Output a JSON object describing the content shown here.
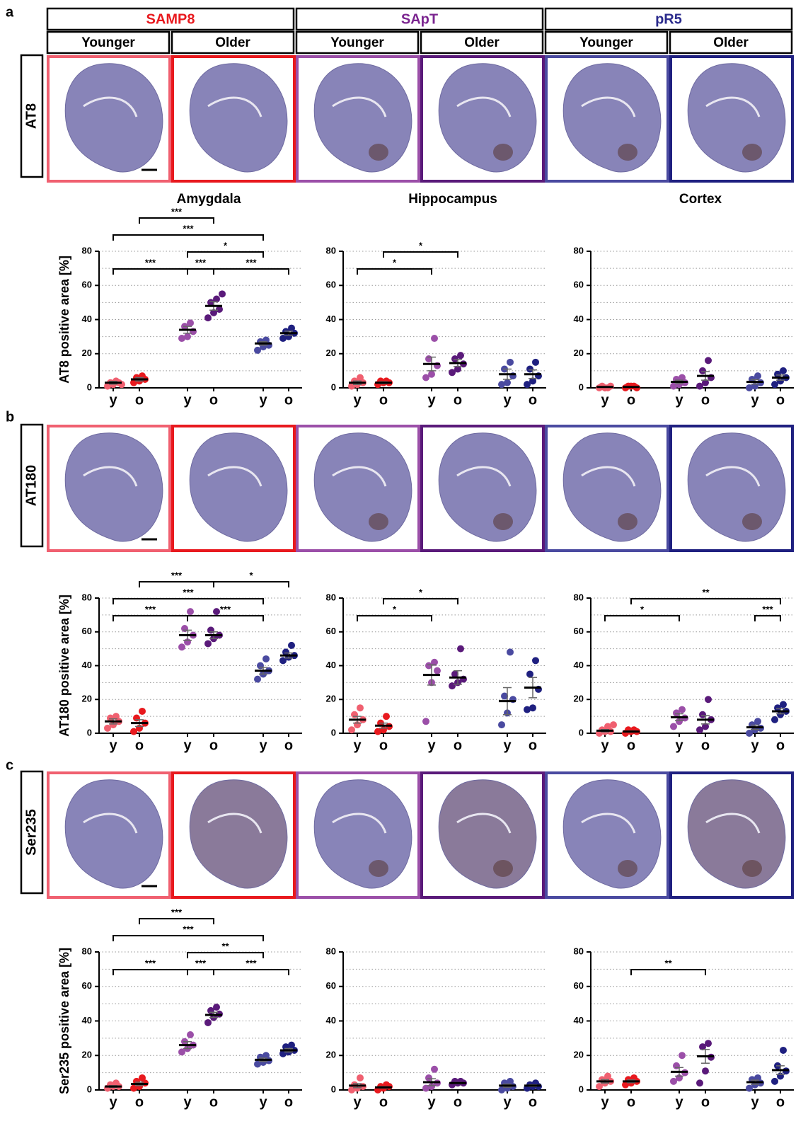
{
  "figure": {
    "panel_labels": [
      "a",
      "b",
      "c"
    ],
    "strains": [
      "SAMP8",
      "SApT",
      "pR5"
    ],
    "strain_colors": [
      "#e8191e",
      "#7b2590",
      "#2a2a8c"
    ],
    "ages": [
      "Younger",
      "Older"
    ],
    "stains": [
      "AT8",
      "AT180",
      "Ser235"
    ]
  },
  "chart_data": [
    {
      "type": "scatter",
      "title": "Amygdala",
      "y_label": "AT8 positive area [%]",
      "categories": [
        "y",
        "o",
        "y",
        "o",
        "y",
        "o"
      ],
      "ylim": [
        0,
        80
      ],
      "yticks": [
        0,
        20,
        40,
        60,
        80
      ],
      "grid_lines": [
        10,
        20,
        30,
        40,
        50,
        60,
        70,
        80
      ],
      "series": [
        {
          "color": "#f06070",
          "values": [
            1,
            2,
            3,
            3,
            4,
            2
          ],
          "mean": 3,
          "sem": 0.8
        },
        {
          "color": "#e8191e",
          "values": [
            3,
            4,
            5,
            6,
            7
          ],
          "mean": 5,
          "sem": 1
        },
        {
          "color": "#9b4fa8",
          "values": [
            29,
            30,
            33,
            36,
            38
          ],
          "mean": 34,
          "sem": 2
        },
        {
          "color": "#5a1a7a",
          "values": [
            41,
            44,
            46,
            50,
            52,
            55
          ],
          "mean": 48,
          "sem": 2.5
        },
        {
          "color": "#4a4aa0",
          "values": [
            22,
            24,
            25,
            27,
            28
          ],
          "mean": 26,
          "sem": 1
        },
        {
          "color": "#1f2080",
          "values": [
            29,
            30,
            32,
            33,
            35
          ],
          "mean": 32,
          "sem": 1.2
        }
      ],
      "brackets": [
        {
          "from": 2,
          "to": 3,
          "label": "***"
        },
        {
          "from": 0,
          "to": 2,
          "label": "***"
        },
        {
          "from": 2,
          "to": 4,
          "label": "*"
        },
        {
          "from": 0,
          "to": 4,
          "label": "***"
        },
        {
          "from": 1,
          "to": 3,
          "label": "***"
        },
        {
          "from": 3,
          "to": 5,
          "label": "***"
        }
      ]
    },
    {
      "type": "scatter",
      "title": "Hippocampus",
      "categories": [
        "y",
        "o",
        "y",
        "o",
        "y",
        "o"
      ],
      "ylim": [
        0,
        80
      ],
      "yticks": [
        0,
        20,
        40,
        60,
        80
      ],
      "grid_lines": [
        10,
        20,
        30,
        40,
        50,
        60,
        70,
        80
      ],
      "series": [
        {
          "color": "#f06070",
          "values": [
            1,
            2,
            3,
            4,
            6
          ],
          "mean": 3,
          "sem": 1
        },
        {
          "color": "#e8191e",
          "values": [
            2,
            3,
            3,
            4,
            4
          ],
          "mean": 3,
          "sem": 0.6
        },
        {
          "color": "#9b4fa8",
          "values": [
            6,
            8,
            13,
            17,
            29
          ],
          "mean": 14,
          "sem": 4
        },
        {
          "color": "#5a1a7a",
          "values": [
            9,
            11,
            14,
            17,
            19
          ],
          "mean": 14.5,
          "sem": 2
        },
        {
          "color": "#4a4aa0",
          "values": [
            2,
            3,
            7,
            11,
            15
          ],
          "mean": 8,
          "sem": 3
        },
        {
          "color": "#1f2080",
          "values": [
            2,
            4,
            7,
            11,
            15
          ],
          "mean": 8,
          "sem": 2.5
        }
      ],
      "brackets": [
        {
          "from": 0,
          "to": 2,
          "label": "*"
        },
        {
          "from": 1,
          "to": 3,
          "label": "*"
        }
      ]
    },
    {
      "type": "scatter",
      "title": "Cortex",
      "categories": [
        "y",
        "o",
        "y",
        "o",
        "y",
        "o"
      ],
      "ylim": [
        0,
        80
      ],
      "yticks": [
        0,
        20,
        40,
        60,
        80
      ],
      "grid_lines": [
        10,
        20,
        30,
        40,
        50,
        60,
        70,
        80
      ],
      "series": [
        {
          "color": "#f06070",
          "values": [
            0,
            0,
            1,
            1,
            0
          ],
          "mean": 0.5,
          "sem": 0.2
        },
        {
          "color": "#e8191e",
          "values": [
            0,
            1,
            0,
            1,
            1
          ],
          "mean": 0.5,
          "sem": 0.2
        },
        {
          "color": "#9b4fa8",
          "values": [
            1,
            2,
            3,
            5,
            6
          ],
          "mean": 3.5,
          "sem": 1
        },
        {
          "color": "#5a1a7a",
          "values": [
            1,
            3,
            6,
            10,
            16
          ],
          "mean": 7,
          "sem": 2.5
        },
        {
          "color": "#4a4aa0",
          "values": [
            0,
            1,
            3,
            5,
            7
          ],
          "mean": 3.5,
          "sem": 1.3
        },
        {
          "color": "#1f2080",
          "values": [
            2,
            4,
            6,
            8,
            10
          ],
          "mean": 6,
          "sem": 1.5
        }
      ],
      "brackets": []
    },
    {
      "type": "scatter",
      "y_label": "AT180 positive area [%]",
      "categories": [
        "y",
        "o",
        "y",
        "o",
        "y",
        "o"
      ],
      "ylim": [
        0,
        80
      ],
      "yticks": [
        0,
        20,
        40,
        60,
        80
      ],
      "grid_lines": [
        10,
        20,
        30,
        40,
        50,
        60,
        70,
        80
      ],
      "series": [
        {
          "color": "#f06070",
          "values": [
            3,
            5,
            7,
            9,
            10
          ],
          "mean": 7,
          "sem": 1.5
        },
        {
          "color": "#e8191e",
          "values": [
            1,
            3,
            6,
            9,
            13
          ],
          "mean": 6,
          "sem": 2
        },
        {
          "color": "#9b4fa8",
          "values": [
            51,
            54,
            58,
            62,
            72
          ],
          "mean": 58,
          "sem": 3
        },
        {
          "color": "#5a1a7a",
          "values": [
            53,
            56,
            58,
            61,
            72
          ],
          "mean": 58,
          "sem": 2
        },
        {
          "color": "#4a4aa0",
          "values": [
            32,
            35,
            37,
            40,
            44
          ],
          "mean": 37,
          "sem": 2
        },
        {
          "color": "#1f2080",
          "values": [
            43,
            45,
            46,
            48,
            52
          ],
          "mean": 46,
          "sem": 1.5
        }
      ],
      "brackets": [
        {
          "from": 0,
          "to": 2,
          "label": "***"
        },
        {
          "from": 2,
          "to": 4,
          "label": "***"
        },
        {
          "from": 0,
          "to": 4,
          "label": "***"
        },
        {
          "from": 1,
          "to": 3,
          "label": "***"
        },
        {
          "from": 3,
          "to": 5,
          "label": "*"
        }
      ]
    },
    {
      "type": "scatter",
      "categories": [
        "y",
        "o",
        "y",
        "o",
        "y",
        "o"
      ],
      "ylim": [
        0,
        80
      ],
      "yticks": [
        0,
        20,
        40,
        60,
        80
      ],
      "grid_lines": [
        10,
        20,
        30,
        40,
        50,
        60,
        70,
        80
      ],
      "series": [
        {
          "color": "#f06070",
          "values": [
            2,
            5,
            8,
            11,
            15
          ],
          "mean": 8,
          "sem": 2
        },
        {
          "color": "#e8191e",
          "values": [
            1,
            2,
            4,
            6,
            10
          ],
          "mean": 4.5,
          "sem": 1.5
        },
        {
          "color": "#9b4fa8",
          "values": [
            7,
            30,
            37,
            40,
            42
          ],
          "mean": 34.5,
          "sem": 6
        },
        {
          "color": "#5a1a7a",
          "values": [
            28,
            30,
            32,
            35,
            50
          ],
          "mean": 33,
          "sem": 4
        },
        {
          "color": "#4a4aa0",
          "values": [
            5,
            12,
            20,
            22,
            48
          ],
          "mean": 19,
          "sem": 8
        },
        {
          "color": "#1f2080",
          "values": [
            14,
            15,
            26,
            35,
            43
          ],
          "mean": 27,
          "sem": 6
        }
      ],
      "brackets": [
        {
          "from": 0,
          "to": 2,
          "label": "*"
        },
        {
          "from": 1,
          "to": 3,
          "label": "*"
        }
      ]
    },
    {
      "type": "scatter",
      "categories": [
        "y",
        "o",
        "y",
        "o",
        "y",
        "o"
      ],
      "ylim": [
        0,
        80
      ],
      "yticks": [
        0,
        20,
        40,
        60,
        80
      ],
      "grid_lines": [
        10,
        20,
        30,
        40,
        50,
        60,
        70,
        80
      ],
      "series": [
        {
          "color": "#f06070",
          "values": [
            0,
            1,
            1,
            2,
            4,
            5
          ],
          "mean": 1.5,
          "sem": 0.7
        },
        {
          "color": "#e8191e",
          "values": [
            0,
            1,
            1,
            2,
            2
          ],
          "mean": 1,
          "sem": 0.4
        },
        {
          "color": "#9b4fa8",
          "values": [
            4,
            7,
            9,
            12,
            14
          ],
          "mean": 9.5,
          "sem": 2
        },
        {
          "color": "#5a1a7a",
          "values": [
            2,
            4,
            8,
            11,
            20
          ],
          "mean": 8,
          "sem": 2.5
        },
        {
          "color": "#4a4aa0",
          "values": [
            0,
            2,
            3,
            5,
            7
          ],
          "mean": 3.5,
          "sem": 1.3
        },
        {
          "color": "#1f2080",
          "values": [
            8,
            11,
            13,
            15,
            17
          ],
          "mean": 13,
          "sem": 1.5
        }
      ],
      "brackets": [
        {
          "from": 4,
          "to": 5,
          "label": "***"
        },
        {
          "from": 0,
          "to": 2,
          "label": "*"
        },
        {
          "from": 1,
          "to": 5,
          "label": "**"
        }
      ]
    },
    {
      "type": "scatter",
      "y_label": "Ser235 positive area [%]",
      "categories": [
        "y",
        "o",
        "y",
        "o",
        "y",
        "o"
      ],
      "ylim": [
        0,
        80
      ],
      "yticks": [
        0,
        20,
        40,
        60,
        80
      ],
      "grid_lines": [
        10,
        20,
        30,
        40,
        50,
        60,
        70,
        80
      ],
      "series": [
        {
          "color": "#f06070",
          "values": [
            1,
            2,
            2,
            3,
            4
          ],
          "mean": 2,
          "sem": 0.5
        },
        {
          "color": "#e8191e",
          "values": [
            1,
            2,
            4,
            5,
            7
          ],
          "mean": 3.5,
          "sem": 1
        },
        {
          "color": "#9b4fa8",
          "values": [
            22,
            24,
            26,
            28,
            32
          ],
          "mean": 26,
          "sem": 2
        },
        {
          "color": "#5a1a7a",
          "values": [
            39,
            42,
            44,
            46,
            48
          ],
          "mean": 43.5,
          "sem": 1.5
        },
        {
          "color": "#4a4aa0",
          "values": [
            15,
            16,
            17,
            19,
            20
          ],
          "mean": 17.5,
          "sem": 1
        },
        {
          "color": "#1f2080",
          "values": [
            21,
            22,
            23,
            25,
            26
          ],
          "mean": 23,
          "sem": 1
        }
      ],
      "brackets": [
        {
          "from": 2,
          "to": 3,
          "label": "***"
        },
        {
          "from": 0,
          "to": 2,
          "label": "***"
        },
        {
          "from": 2,
          "to": 4,
          "label": "**"
        },
        {
          "from": 0,
          "to": 4,
          "label": "***"
        },
        {
          "from": 1,
          "to": 3,
          "label": "***"
        },
        {
          "from": 3,
          "to": 5,
          "label": "***"
        }
      ]
    },
    {
      "type": "scatter",
      "categories": [
        "y",
        "o",
        "y",
        "o",
        "y",
        "o"
      ],
      "ylim": [
        0,
        80
      ],
      "yticks": [
        0,
        20,
        40,
        60,
        80
      ],
      "grid_lines": [
        10,
        20,
        30,
        40,
        50,
        60,
        70,
        80
      ],
      "series": [
        {
          "color": "#f06070",
          "values": [
            0,
            1,
            2,
            3,
            7
          ],
          "mean": 2.5,
          "sem": 1.2
        },
        {
          "color": "#e8191e",
          "values": [
            0,
            1,
            2,
            2,
            3
          ],
          "mean": 1.5,
          "sem": 0.5
        },
        {
          "color": "#9b4fa8",
          "values": [
            1,
            2,
            4,
            7,
            12
          ],
          "mean": 4.5,
          "sem": 2
        },
        {
          "color": "#5a1a7a",
          "values": [
            3,
            4,
            4,
            5,
            5
          ],
          "mean": 4,
          "sem": 0.4
        },
        {
          "color": "#4a4aa0",
          "values": [
            0,
            1,
            2,
            4,
            5
          ],
          "mean": 2.5,
          "sem": 0.9
        },
        {
          "color": "#1f2080",
          "values": [
            1,
            2,
            2,
            3,
            4
          ],
          "mean": 2.5,
          "sem": 0.5
        }
      ],
      "brackets": []
    },
    {
      "type": "scatter",
      "categories": [
        "y",
        "o",
        "y",
        "o",
        "y",
        "o"
      ],
      "ylim": [
        0,
        80
      ],
      "yticks": [
        0,
        20,
        40,
        60,
        80
      ],
      "grid_lines": [
        10,
        20,
        30,
        40,
        50,
        60,
        70,
        80
      ],
      "series": [
        {
          "color": "#f06070",
          "values": [
            2,
            4,
            5,
            6,
            8
          ],
          "mean": 5,
          "sem": 1
        },
        {
          "color": "#e8191e",
          "values": [
            3,
            4,
            5,
            6,
            7
          ],
          "mean": 5,
          "sem": 0.8
        },
        {
          "color": "#9b4fa8",
          "values": [
            5,
            7,
            10,
            14,
            20
          ],
          "mean": 10.5,
          "sem": 2.5
        },
        {
          "color": "#5a1a7a",
          "values": [
            4,
            11,
            19,
            25,
            27
          ],
          "mean": 19.5,
          "sem": 4
        },
        {
          "color": "#4a4aa0",
          "values": [
            1,
            3,
            4,
            6,
            7
          ],
          "mean": 4.5,
          "sem": 1.2
        },
        {
          "color": "#1f2080",
          "values": [
            5,
            8,
            11,
            14,
            23
          ],
          "mean": 11.5,
          "sem": 2.5
        }
      ],
      "brackets": [
        {
          "from": 1,
          "to": 3,
          "label": "**"
        }
      ]
    }
  ]
}
